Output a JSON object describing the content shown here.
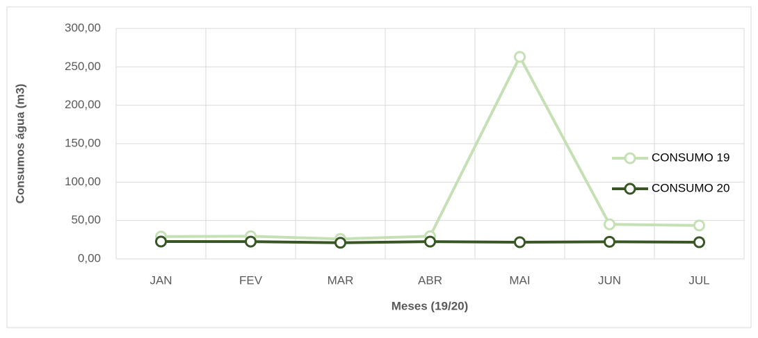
{
  "chart_data": {
    "type": "line",
    "categories": [
      "JAN",
      "FEV",
      "MAR",
      "ABR",
      "MAI",
      "JUN",
      "JUL"
    ],
    "series": [
      {
        "name": "CONSUMO 19",
        "color": "#c5e0b4",
        "values": [
          29,
          29.5,
          26,
          29.5,
          263,
          45,
          43.5
        ]
      },
      {
        "name": "CONSUMO 20",
        "color": "#375623",
        "values": [
          22.6,
          22.5,
          21,
          22.5,
          21.7,
          22.3,
          21.7
        ]
      }
    ],
    "ylim": [
      0,
      300
    ],
    "yticks": [
      {
        "value": 0,
        "label": "0,00"
      },
      {
        "value": 50,
        "label": "50,00"
      },
      {
        "value": 100,
        "label": "100,00"
      },
      {
        "value": 150,
        "label": "150,00"
      },
      {
        "value": 200,
        "label": "200,00"
      },
      {
        "value": 250,
        "label": "250,00"
      },
      {
        "value": 300,
        "label": "300,00"
      }
    ],
    "y_label": "Consumos água (m3)",
    "x_label": "Meses (19/20)",
    "grid": true,
    "legend": "right"
  }
}
